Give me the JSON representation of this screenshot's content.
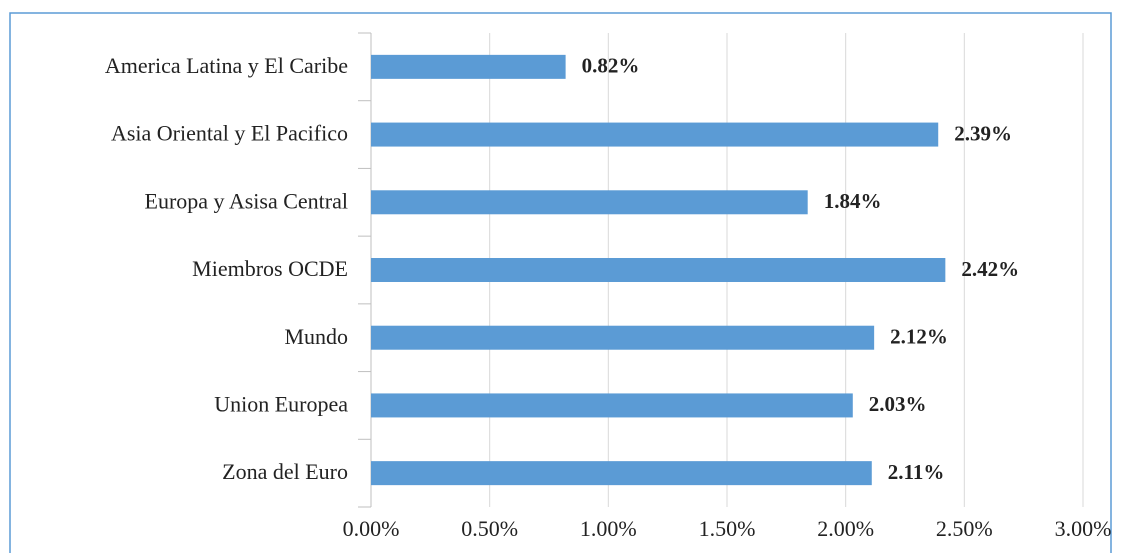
{
  "chart_data": {
    "type": "barh",
    "categories": [
      "America Latina y El Caribe",
      "Asia Oriental y El Pacifico",
      "Europa y Asisa Central",
      "Miembros OCDE",
      "Mundo",
      "Union Europea",
      "Zona del Euro"
    ],
    "values": [
      0.82,
      2.39,
      1.84,
      2.42,
      2.12,
      2.03,
      2.11
    ],
    "value_labels": [
      "0.82%",
      "2.39%",
      "1.84%",
      "2.42%",
      "2.12%",
      "2.03%",
      "2.11%"
    ],
    "color": "#5b9bd5",
    "xlim": [
      0,
      3
    ],
    "xticks": [
      {
        "value": 0,
        "label": "0.00%"
      },
      {
        "value": 0.5,
        "label": "0.50%"
      },
      {
        "value": 1,
        "label": "1.00%"
      },
      {
        "value": 1.5,
        "label": "1.50%"
      },
      {
        "value": 2,
        "label": "2.00%"
      },
      {
        "value": 2.5,
        "label": "2.50%"
      },
      {
        "value": 3,
        "label": "3.00%"
      }
    ],
    "grid": true
  }
}
